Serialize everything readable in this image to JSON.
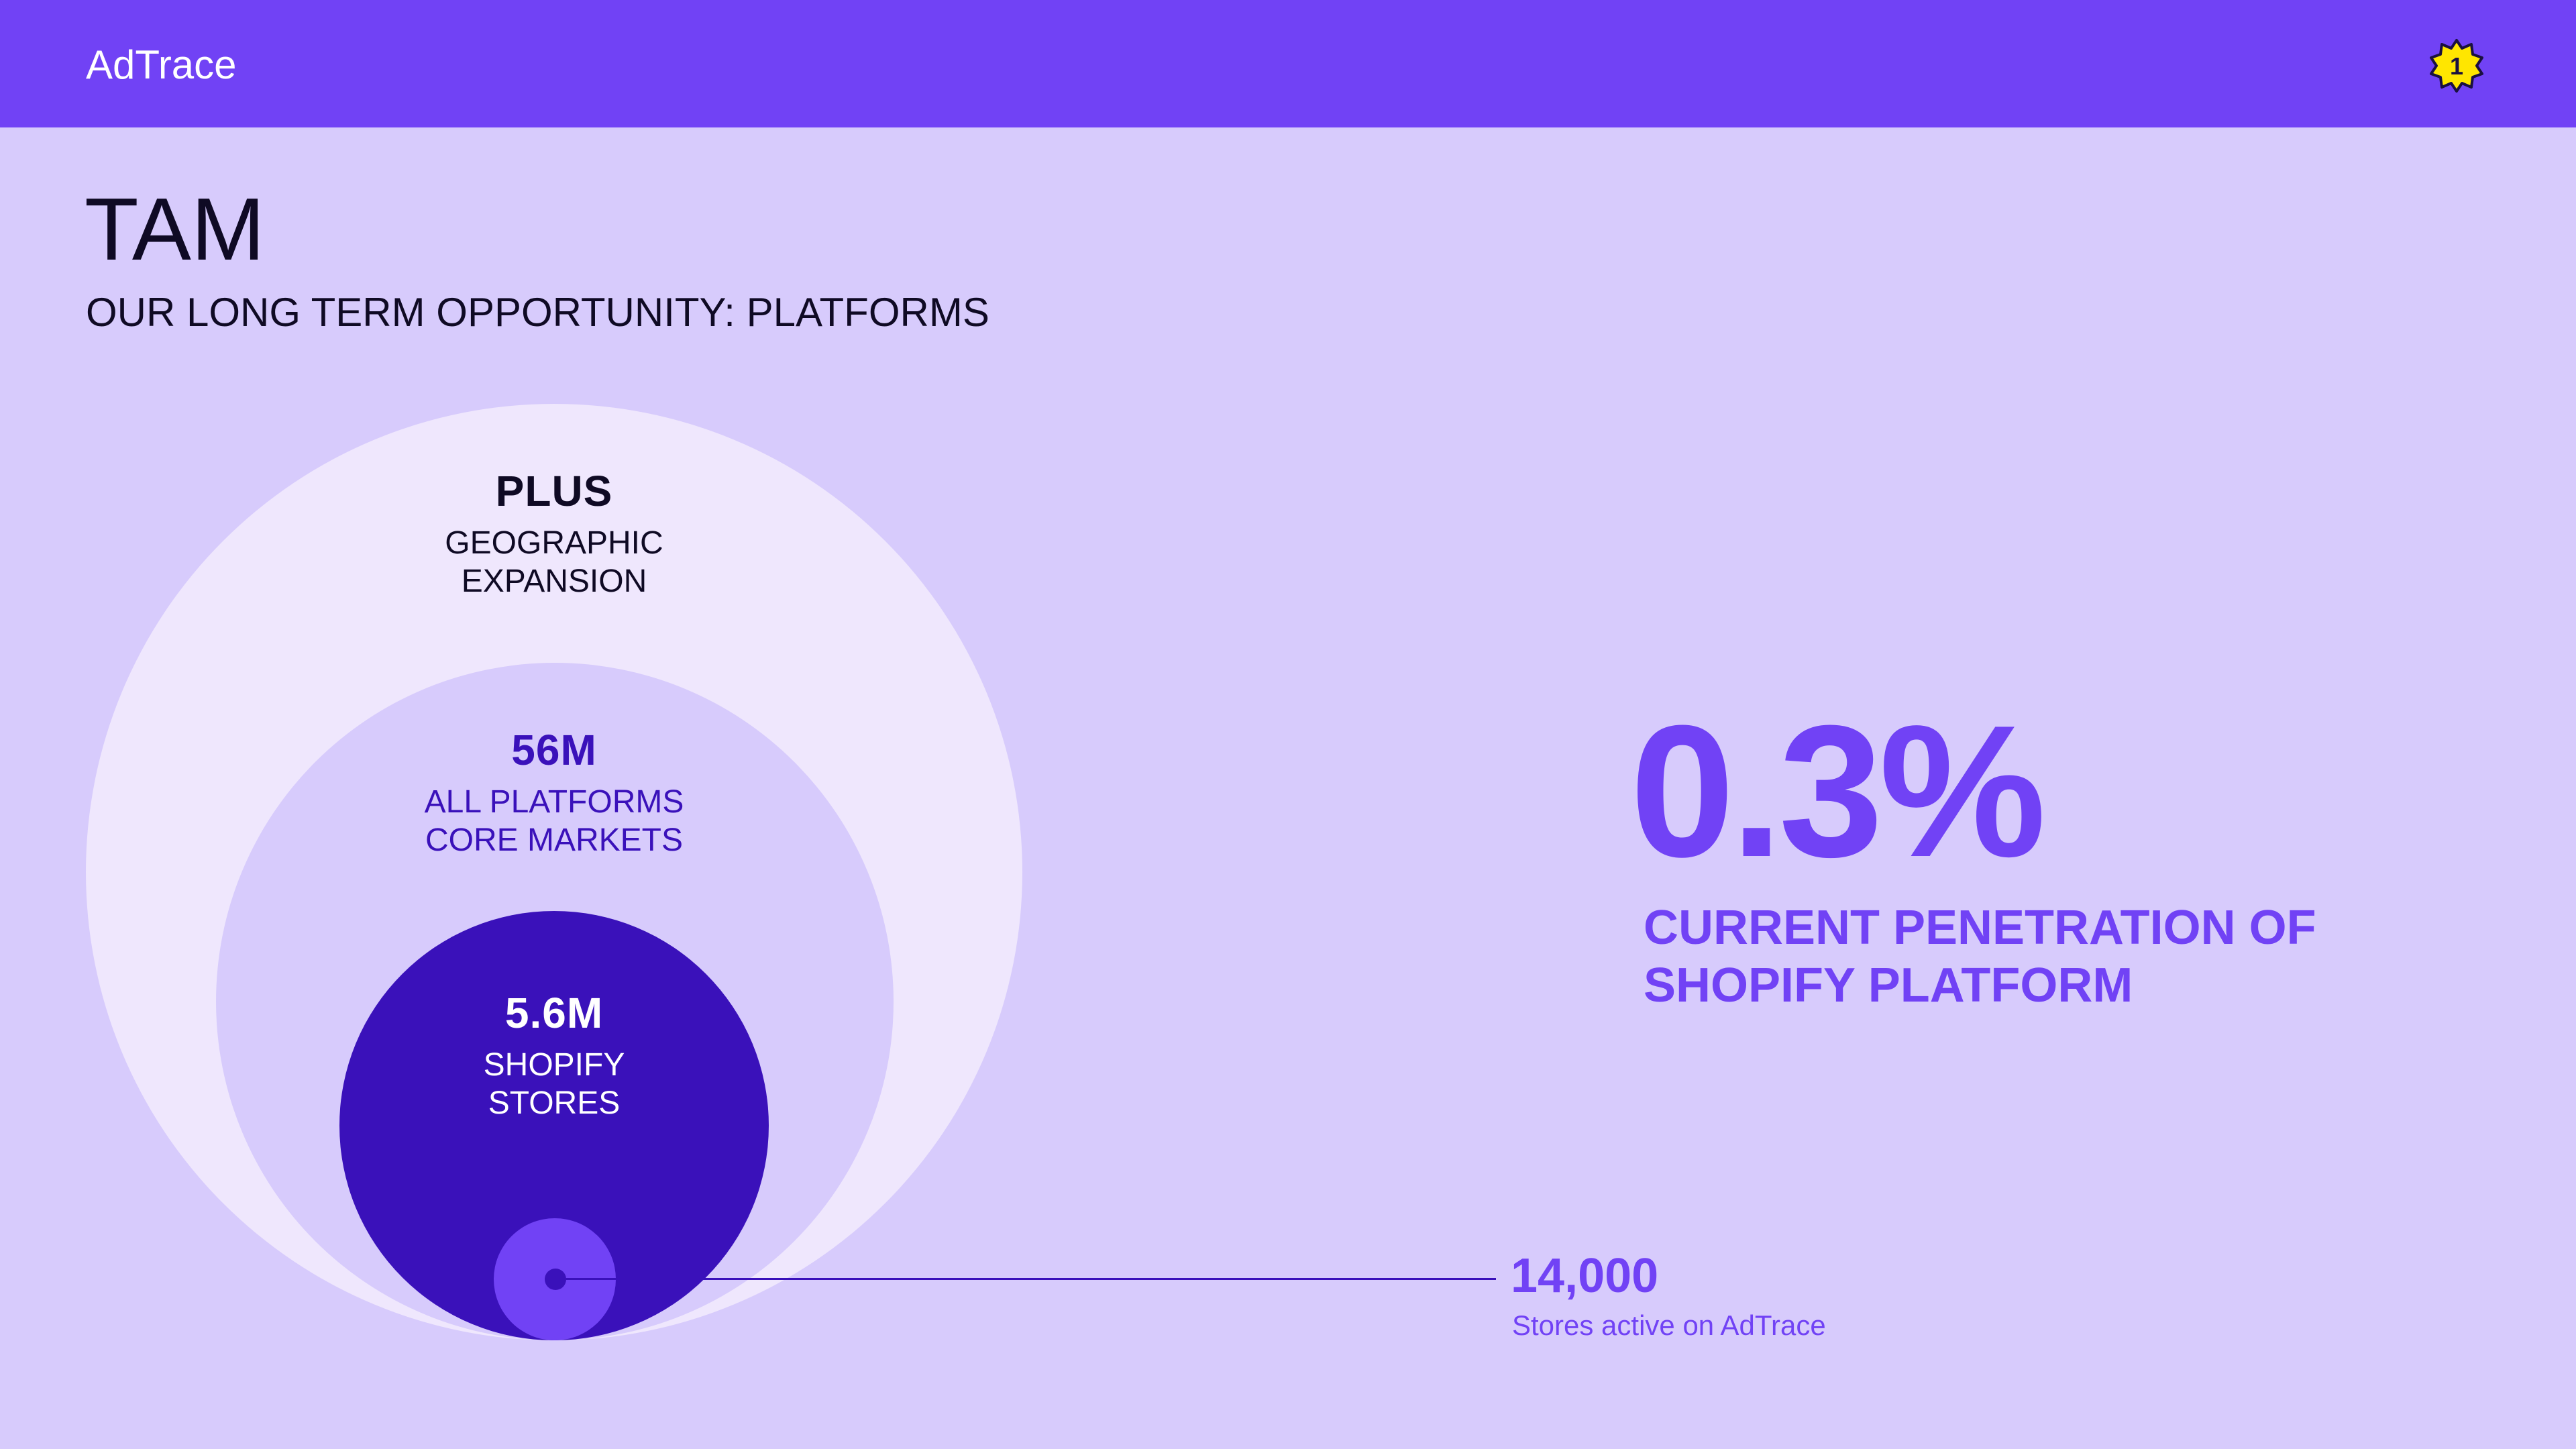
{
  "header": {
    "brand": "AdTrace",
    "badge_number": "1",
    "badge_color": "#ffe600",
    "bar_color": "#7142f5"
  },
  "page": {
    "title": "TAM",
    "subtitle": "OUR LONG TERM OPPORTUNITY: PLATFORMS"
  },
  "circles": {
    "outer": {
      "value": "PLUS",
      "line1": "GEOGRAPHIC",
      "line2": "EXPANSION",
      "color": "#efe7fd"
    },
    "middle": {
      "value": "56M",
      "line1": "ALL PLATFORMS",
      "line2": "CORE MARKETS",
      "color": "#d7cbfc"
    },
    "inner": {
      "value": "5.6M",
      "line1": "SHOPIFY",
      "line2": "STORES",
      "color": "#3a11ba"
    },
    "active": {
      "value": "14,000",
      "caption": "Stores active on AdTrace",
      "color": "#7142f5"
    }
  },
  "highlight": {
    "value": "0.3%",
    "line1": "CURRENT PENETRATION OF",
    "line2": "SHOPIFY PLATFORM",
    "color": "#7142f5"
  }
}
